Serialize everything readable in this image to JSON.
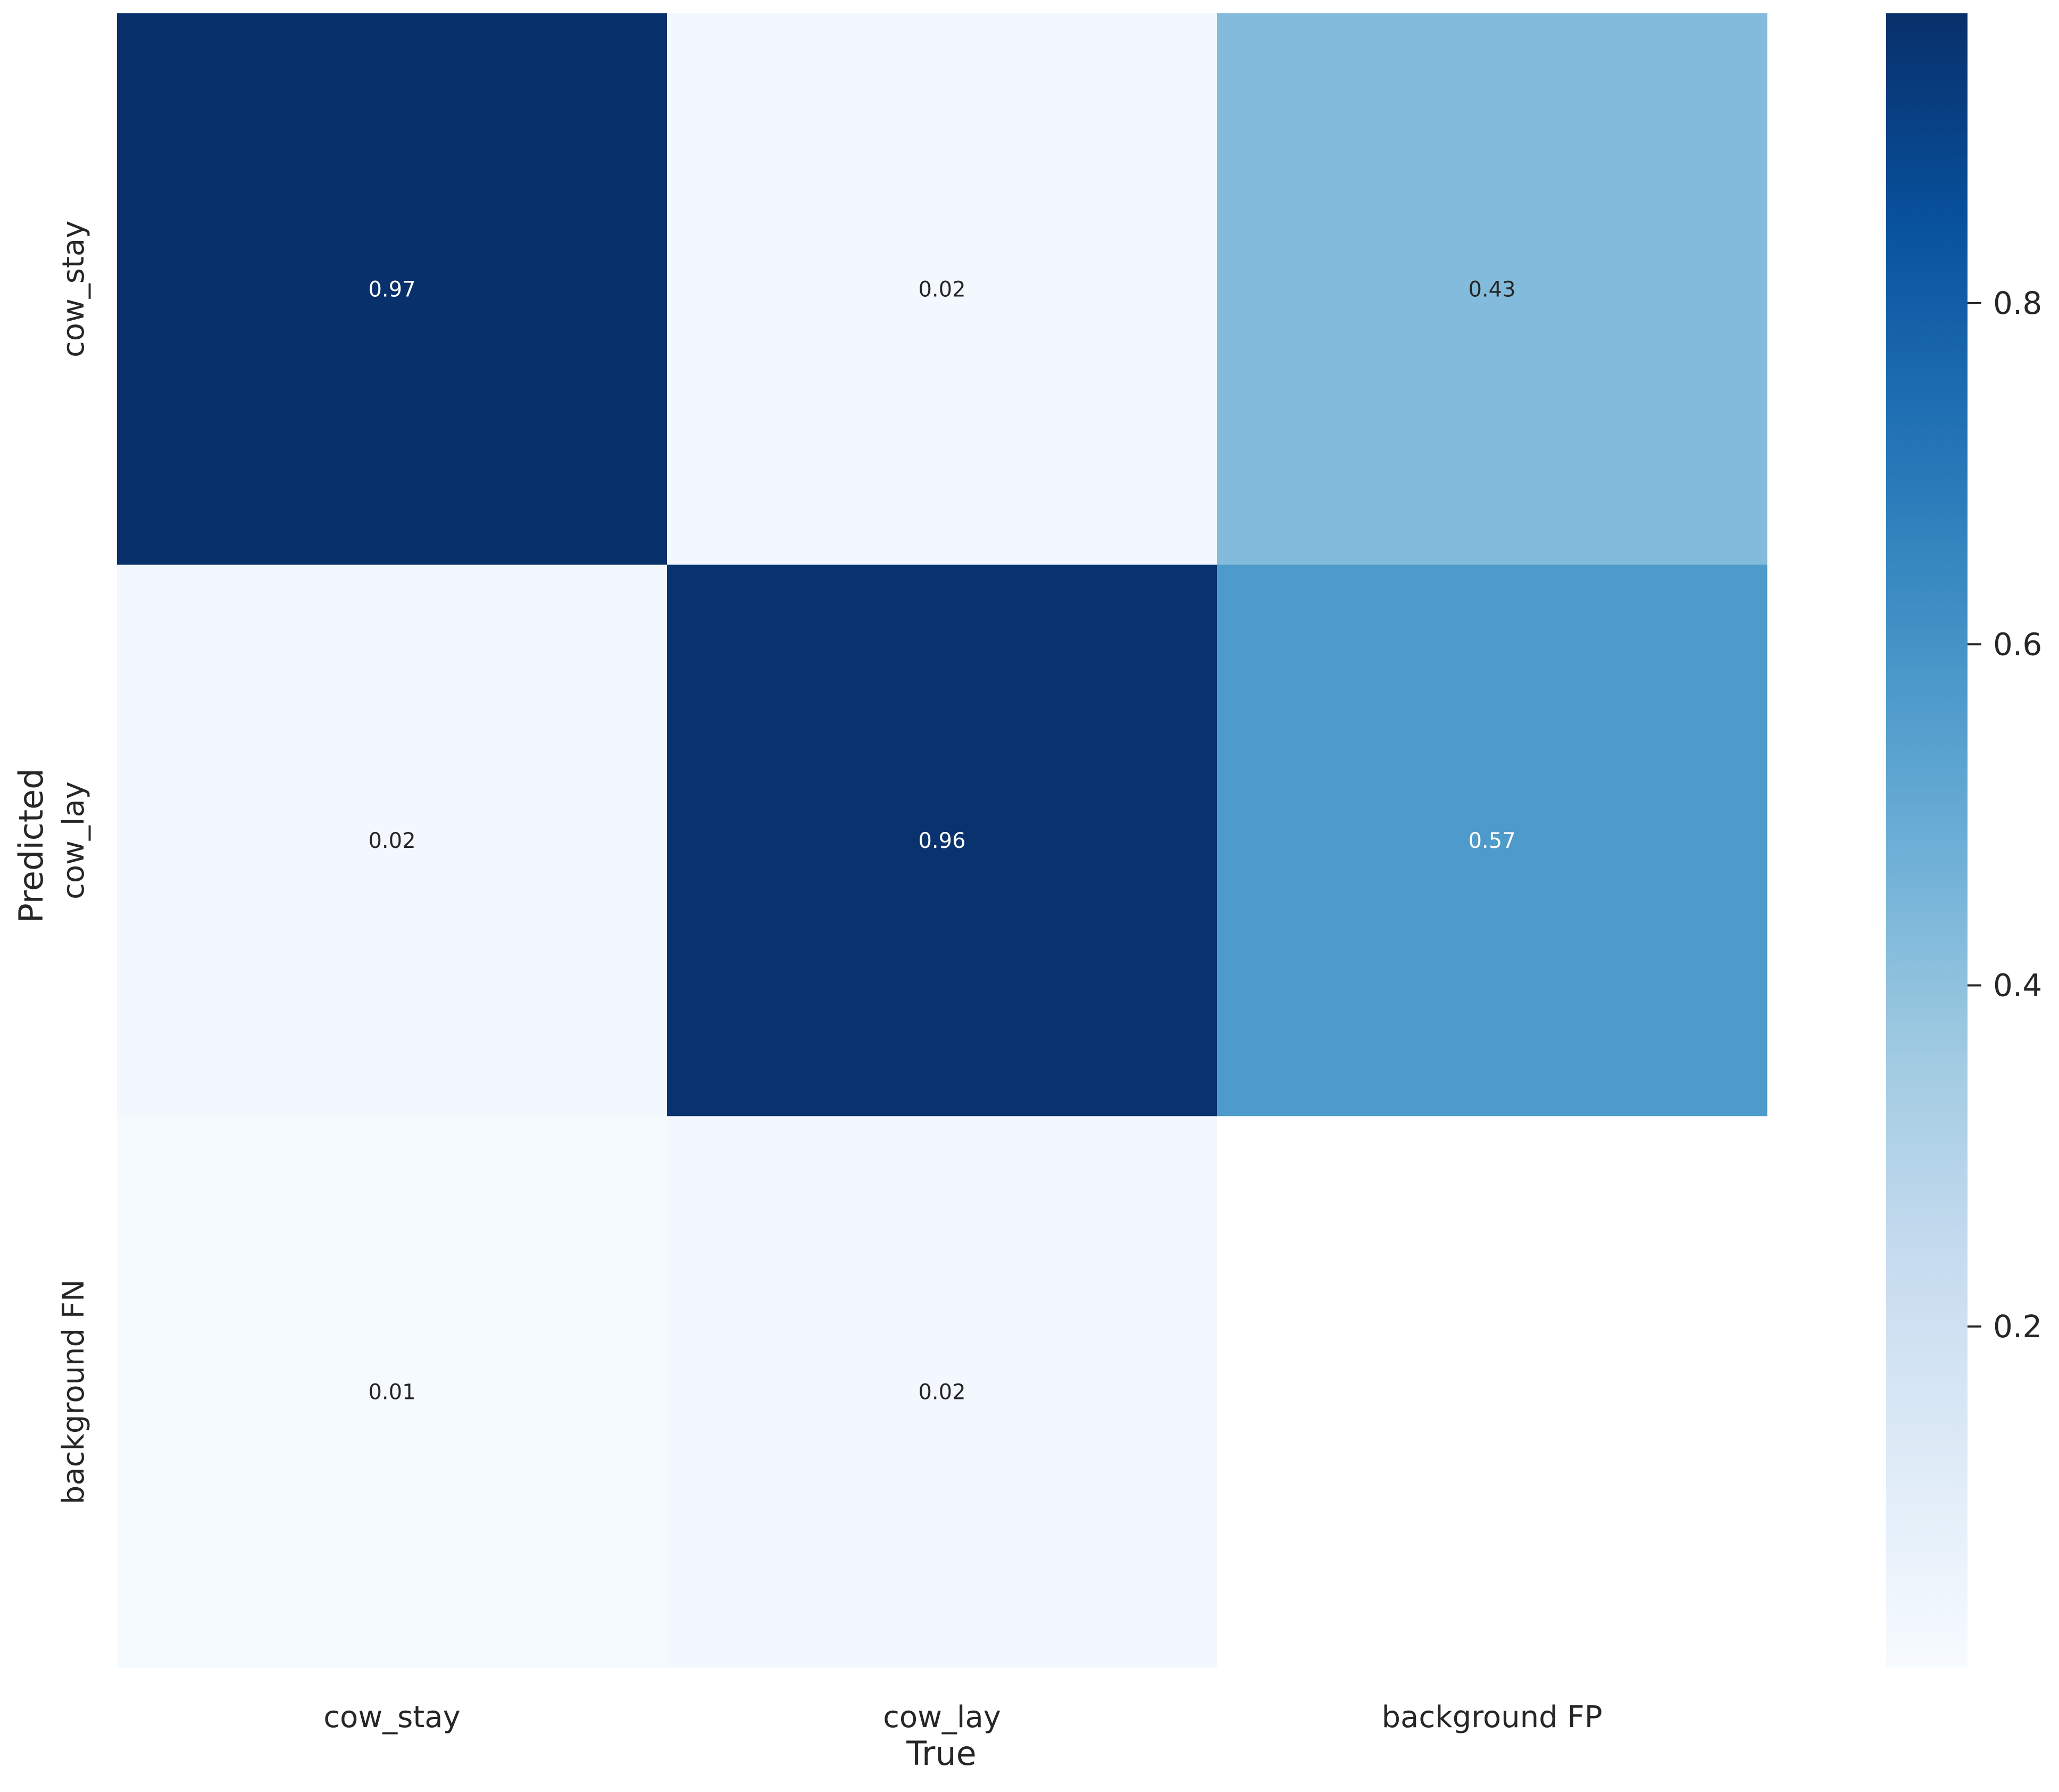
{
  "chart_data": {
    "type": "heatmap",
    "xlabel": "True",
    "ylabel": "Predicted",
    "x_categories": [
      "cow_stay",
      "cow_lay",
      "background FP"
    ],
    "y_categories": [
      "cow_stay",
      "cow_lay",
      "background FN"
    ],
    "values": [
      [
        0.97,
        0.02,
        0.43
      ],
      [
        0.02,
        0.96,
        0.57
      ],
      [
        0.01,
        0.02,
        null
      ]
    ],
    "cell_labels": [
      [
        "0.97",
        "0.02",
        "0.43"
      ],
      [
        "0.02",
        "0.96",
        "0.57"
      ],
      [
        "0.01",
        "0.02",
        ""
      ]
    ],
    "colormap": "Blues",
    "colorbar": {
      "range": [
        0.0,
        0.97
      ],
      "ticks": [
        0.2,
        0.4,
        0.6,
        0.8
      ],
      "tick_labels": [
        "0.2",
        "0.4",
        "0.6",
        "0.8"
      ]
    },
    "grid": false,
    "legend": "colorbar-right"
  }
}
